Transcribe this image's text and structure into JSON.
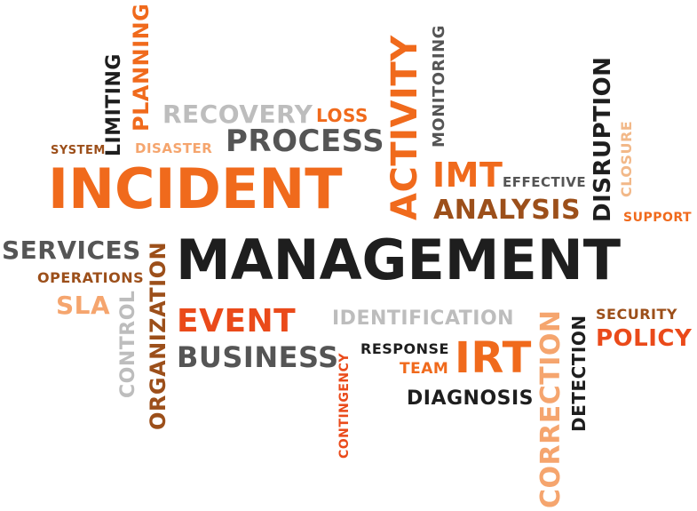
{
  "colors": {
    "black": "#1e1e1e",
    "dark_gray": "#555555",
    "light_gray": "#bdbdbd",
    "orange": "#f06a1c",
    "red_orange": "#ea4a1a",
    "brown": "#9c4f1a",
    "light_orange": "#f5a56e",
    "tan": "#f2b888"
  },
  "words": {
    "management": "MANAGEMENT",
    "incident": "INCIDENT",
    "activity": "ACTIVITY",
    "process": "PROCESS",
    "recovery": "RECOVERY",
    "loss": "LOSS",
    "disaster": "DISASTER",
    "system": "SYSTEM",
    "limiting": "LIMITING",
    "planning": "PLANNING",
    "monitoring": "MONITORING",
    "imt": "IMT",
    "effective": "EFFECTIVE",
    "analysis": "ANALYSIS",
    "disruption": "DISRUPTION",
    "closure": "CLOSURE",
    "support": "SUPPORT",
    "services": "SERVICES",
    "operations": "OPERATIONS",
    "sla": "SLA",
    "control": "CONTROL",
    "organization": "ORGANIZATION",
    "event": "EVENT",
    "business": "BUSINESS",
    "identification": "IDENTIFICATION",
    "contingency": "CONTINGENCY",
    "response": "RESPONSE",
    "team": "TEAM",
    "irt": "IRT",
    "diagnosis": "DIAGNOSIS",
    "correction": "CORRECTION",
    "detection": "DETECTION",
    "security": "SECURITY",
    "policy": "POLICY"
  }
}
